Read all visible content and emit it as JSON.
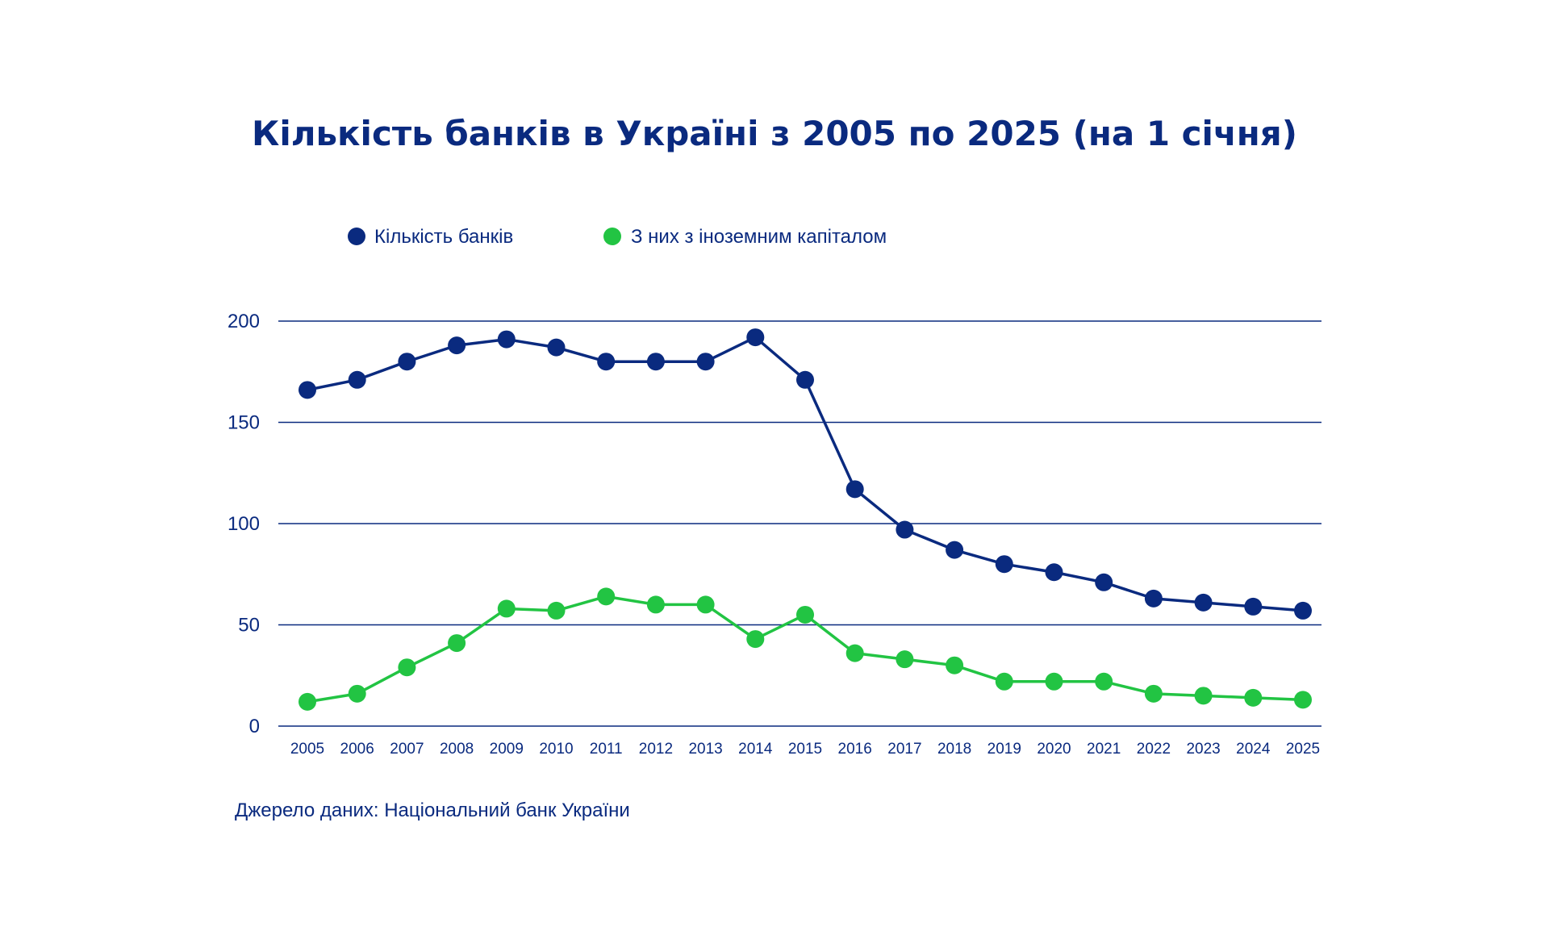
{
  "chart_data": {
    "type": "line",
    "title": "Кількість банків в Україні з 2005 по 2025 (на 1 січня)",
    "xlabel": "",
    "ylabel": "",
    "ylim": [
      0,
      200
    ],
    "yticks": [
      0,
      50,
      100,
      150,
      200
    ],
    "grid": true,
    "legend_position": "top-left",
    "categories": [
      "2005",
      "2006",
      "2007",
      "2008",
      "2009",
      "2010",
      "2011",
      "2012",
      "2013",
      "2014",
      "2015",
      "2016",
      "2017",
      "2018",
      "2019",
      "2020",
      "2021",
      "2022",
      "2023",
      "2024",
      "2025"
    ],
    "series": [
      {
        "name": "Кількість банків",
        "color": "#0a2a7f",
        "values": [
          166,
          171,
          180,
          188,
          191,
          187,
          180,
          180,
          180,
          192,
          171,
          117,
          97,
          87,
          80,
          76,
          71,
          63,
          61,
          59,
          57
        ]
      },
      {
        "name": "З них з іноземним капіталом",
        "color": "#22c443",
        "values": [
          12,
          16,
          29,
          41,
          58,
          57,
          64,
          60,
          60,
          43,
          55,
          36,
          33,
          30,
          22,
          22,
          22,
          16,
          15,
          14,
          13
        ]
      }
    ],
    "source": "Джерело даних: Національний банк України"
  }
}
